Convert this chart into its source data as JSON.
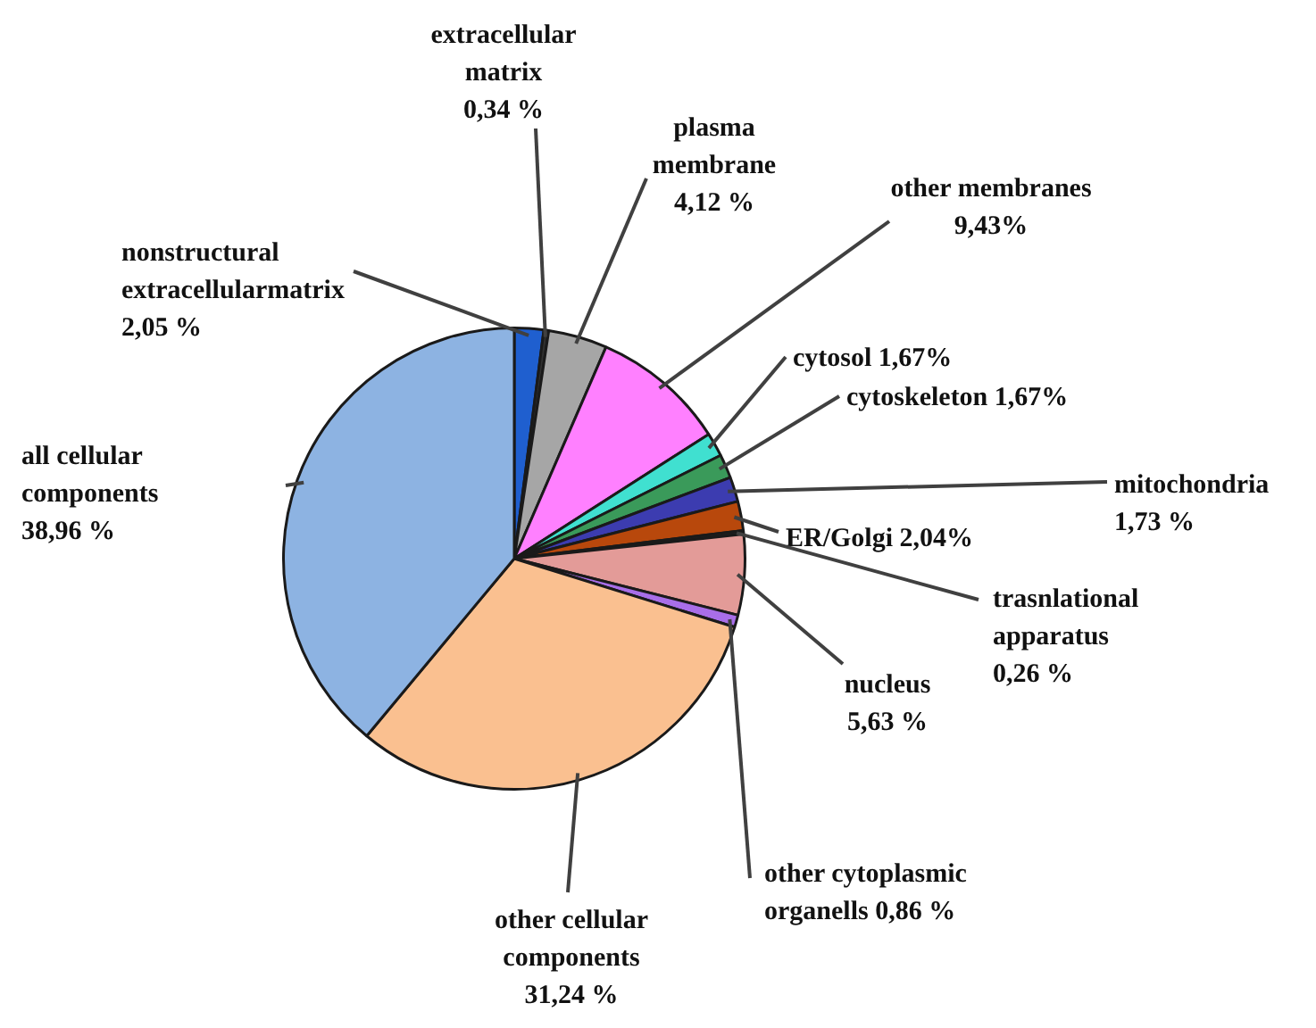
{
  "chart_data": {
    "type": "pie",
    "categories": [
      "nonstructural extracellularmatrix",
      "extracellular matrix",
      "plasma membrane",
      "other membranes",
      "cytosol",
      "cytoskeleton",
      "mitochondria",
      "ER/Golgi",
      "trasnlational apparatus",
      "nucleus",
      "other cytoplasmic organells",
      "other cellular components",
      "all cellular components"
    ],
    "values": [
      2.05,
      0.34,
      4.12,
      9.43,
      1.67,
      1.67,
      1.73,
      2.04,
      0.26,
      5.63,
      0.86,
      31.24,
      38.96
    ],
    "value_labels": [
      "2,05 %",
      "0,34 %",
      "4,12 %",
      "9,43%",
      "1,67%",
      "1,67%",
      "1,73 %",
      "2,04%",
      "0,26 %",
      "5,63 %",
      "0,86 %",
      "31,24 %",
      "38,96 %"
    ],
    "colors": [
      "#1f5fcf",
      "#303030",
      "#a6a6a6",
      "#ff80ff",
      "#40e0d0",
      "#3a9a5a",
      "#3c3cb0",
      "#b8480c",
      "#222222",
      "#e39b98",
      "#a86ee8",
      "#fac090",
      "#8db3e2"
    ]
  }
}
